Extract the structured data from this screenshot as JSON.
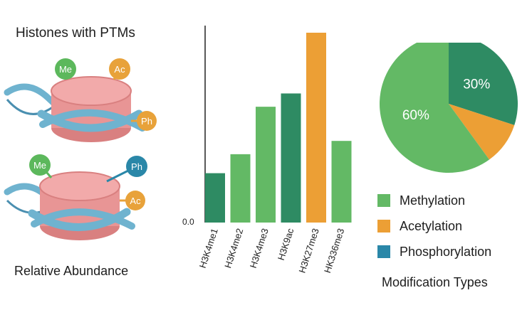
{
  "left_panel": {
    "title": "Histones with PTMs",
    "footer": "Relative Abundance",
    "nucleosome_top": {
      "labels": {
        "me": "Me",
        "ac": "Ac",
        "ph": "Ph"
      }
    },
    "nucleosome_bottom": {
      "labels": {
        "me": "Me",
        "ph": "Ph",
        "ac": "Ac"
      }
    },
    "colors": {
      "me": "#5cb85c",
      "ac": "#e8a23a",
      "ph": "#2a87a8",
      "histone": "#e89595",
      "dna": "#6fb3cf"
    }
  },
  "chart_data": [
    {
      "type": "bar",
      "title": "",
      "xlabel": "",
      "ylabel": "",
      "y_tick_label": "0.0",
      "ylim": [
        0,
        1
      ],
      "categories": [
        "H3K4me1",
        "H3K4me2",
        "H3K4me3",
        "H3K9ac",
        "H3K27me3",
        "HK336me3"
      ],
      "values": [
        0.26,
        0.36,
        0.61,
        0.68,
        1.0,
        0.43
      ],
      "colors": [
        "#2e8b63",
        "#63b965",
        "#63b965",
        "#2e8b63",
        "#ec9f35",
        "#63b965"
      ],
      "grid": false
    },
    {
      "type": "pie",
      "title": "Modification Types",
      "slices": [
        {
          "name": "Phosphorylation",
          "value": 30,
          "label": "30%",
          "color": "#2e8b63"
        },
        {
          "name": "Acetylation",
          "value": 10,
          "label": "",
          "color": "#ec9f35"
        },
        {
          "name": "Methylation",
          "value": 60,
          "label": "60%",
          "color": "#63b965"
        }
      ],
      "legend": {
        "position": "bottom-right",
        "entries": [
          {
            "label": "Methylation",
            "color": "#63b965"
          },
          {
            "label": "Acetylation",
            "color": "#ec9f35"
          },
          {
            "label": "Phosphorylation",
            "color": "#2a87a8"
          }
        ]
      }
    }
  ]
}
